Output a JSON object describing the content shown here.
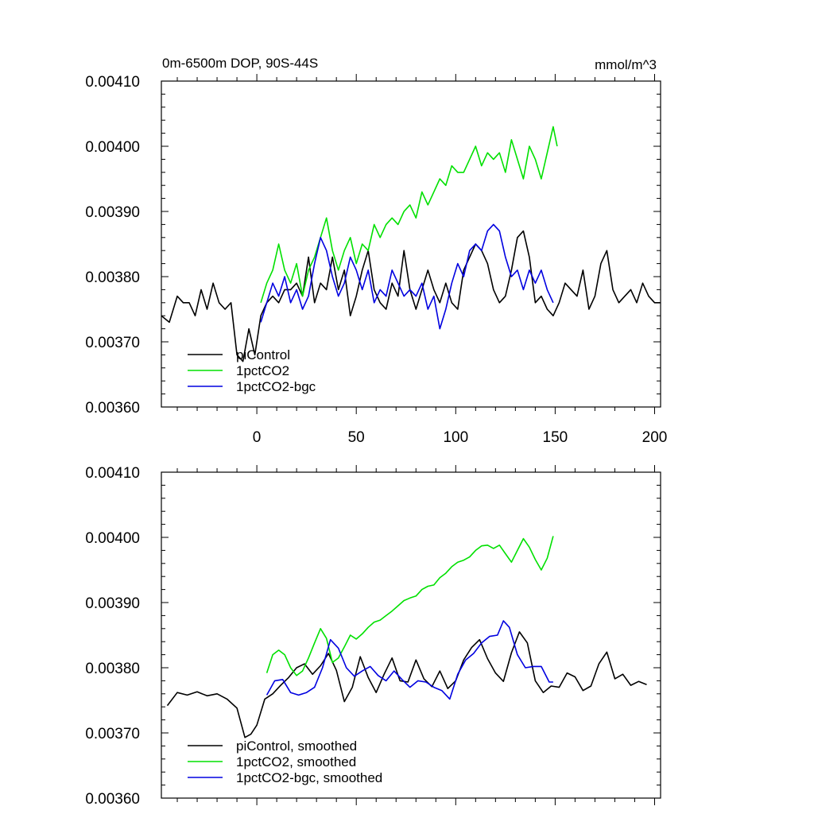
{
  "chart_data": [
    {
      "type": "line",
      "title_left": "0m-6500m DOP, 90S-44S",
      "title_right": "mmol/m^3",
      "xlabel": "",
      "ylabel": "",
      "xlim": [
        -48,
        203
      ],
      "ylim": [
        0.0036,
        0.0041
      ],
      "xticks": [
        0,
        50,
        100,
        150,
        200
      ],
      "xtick_labels": [
        "0",
        "50",
        "100",
        "150",
        "200"
      ],
      "yticks": [
        0.0036,
        0.0037,
        0.0038,
        0.0039,
        0.004,
        0.0041
      ],
      "ytick_labels": [
        "0.00360",
        "0.00370",
        "0.00380",
        "0.00390",
        "0.00400",
        "0.00410"
      ],
      "legend_location": "bottom-left",
      "series": [
        {
          "name": "piControl",
          "color": "#000000",
          "x": [
            -48,
            -44,
            -40,
            -37,
            -34,
            -31,
            -28,
            -25,
            -22,
            -19,
            -16,
            -13,
            -10,
            -7,
            -4,
            -1,
            2,
            5,
            8,
            11,
            14,
            17,
            20,
            23,
            26,
            29,
            32,
            35,
            38,
            41,
            44,
            47,
            50,
            53,
            56,
            59,
            62,
            65,
            68,
            71,
            74,
            77,
            80,
            83,
            86,
            89,
            92,
            95,
            98,
            101,
            104,
            107,
            110,
            113,
            116,
            119,
            122,
            125,
            128,
            131,
            134,
            137,
            140,
            143,
            146,
            149,
            152,
            155,
            158,
            161,
            164,
            167,
            170,
            173,
            176,
            179,
            182,
            185,
            188,
            191,
            194,
            197,
            200,
            203
          ],
          "values": [
            0.00374,
            0.00373,
            0.00377,
            0.00376,
            0.00376,
            0.00374,
            0.00378,
            0.00375,
            0.00379,
            0.00376,
            0.00375,
            0.00376,
            0.00368,
            0.00367,
            0.00372,
            0.00368,
            0.00374,
            0.00376,
            0.00377,
            0.00376,
            0.00378,
            0.00378,
            0.00379,
            0.00377,
            0.00383,
            0.00376,
            0.00379,
            0.00378,
            0.00383,
            0.00378,
            0.00381,
            0.00374,
            0.00377,
            0.00381,
            0.00384,
            0.00378,
            0.00376,
            0.00375,
            0.00379,
            0.00377,
            0.00384,
            0.00378,
            0.00375,
            0.00378,
            0.00381,
            0.00378,
            0.00376,
            0.00379,
            0.00376,
            0.00375,
            0.00381,
            0.00383,
            0.00385,
            0.00384,
            0.00382,
            0.00378,
            0.00376,
            0.00377,
            0.00381,
            0.00386,
            0.00387,
            0.00383,
            0.00376,
            0.00377,
            0.00375,
            0.00374,
            0.00376,
            0.00379,
            0.00378,
            0.00377,
            0.00381,
            0.00375,
            0.00377,
            0.00382,
            0.00384,
            0.00378,
            0.00376,
            0.00377,
            0.00378,
            0.00376,
            0.00379,
            0.00377,
            0.00376,
            0.00376
          ]
        },
        {
          "name": "1pctCO2",
          "color": "#00e000",
          "x": [
            2,
            5,
            8,
            11,
            14,
            17,
            20,
            23,
            26,
            29,
            32,
            35,
            38,
            41,
            44,
            47,
            50,
            53,
            56,
            59,
            62,
            65,
            68,
            71,
            74,
            77,
            80,
            83,
            86,
            89,
            92,
            95,
            98,
            101,
            104,
            107,
            110,
            113,
            116,
            119,
            122,
            125,
            128,
            131,
            134,
            137,
            140,
            143,
            146,
            149,
            151
          ],
          "values": [
            0.00376,
            0.00379,
            0.00381,
            0.00385,
            0.00381,
            0.00379,
            0.00382,
            0.00377,
            0.00381,
            0.00383,
            0.00386,
            0.00389,
            0.00384,
            0.00381,
            0.00384,
            0.00386,
            0.00382,
            0.00385,
            0.00384,
            0.00388,
            0.00386,
            0.00388,
            0.00389,
            0.00388,
            0.0039,
            0.00391,
            0.00389,
            0.00393,
            0.00391,
            0.00393,
            0.00395,
            0.00394,
            0.00397,
            0.00396,
            0.00396,
            0.00398,
            0.004,
            0.00397,
            0.00399,
            0.00398,
            0.00399,
            0.00396,
            0.00401,
            0.00398,
            0.00395,
            0.004,
            0.00398,
            0.00395,
            0.00399,
            0.00403,
            0.004
          ]
        },
        {
          "name": "1pctCO2-bgc",
          "color": "#0000e0",
          "x": [
            2,
            5,
            8,
            11,
            14,
            17,
            20,
            23,
            26,
            29,
            32,
            35,
            38,
            41,
            44,
            47,
            50,
            53,
            56,
            59,
            62,
            65,
            68,
            71,
            74,
            77,
            80,
            83,
            86,
            89,
            92,
            95,
            98,
            101,
            104,
            107,
            110,
            113,
            116,
            119,
            122,
            125,
            128,
            131,
            134,
            137,
            140,
            143,
            146,
            149
          ],
          "values": [
            0.00373,
            0.00376,
            0.00379,
            0.00377,
            0.0038,
            0.00376,
            0.00378,
            0.00375,
            0.00377,
            0.00382,
            0.00386,
            0.00384,
            0.0038,
            0.00377,
            0.00379,
            0.00383,
            0.00381,
            0.00378,
            0.00381,
            0.00376,
            0.00378,
            0.00377,
            0.00381,
            0.00379,
            0.00377,
            0.00378,
            0.00377,
            0.00379,
            0.00375,
            0.00377,
            0.00372,
            0.00375,
            0.00379,
            0.00382,
            0.0038,
            0.00384,
            0.00385,
            0.00384,
            0.00387,
            0.00388,
            0.00387,
            0.00383,
            0.0038,
            0.00381,
            0.00378,
            0.00381,
            0.00379,
            0.00381,
            0.00378,
            0.00376
          ]
        }
      ]
    },
    {
      "type": "line",
      "xlim": [
        -48,
        203
      ],
      "ylim": [
        0.0036,
        0.0041
      ],
      "xticks": [
        0,
        50,
        100,
        150,
        200
      ],
      "yticks": [
        0.0036,
        0.0037,
        0.0038,
        0.0039,
        0.004,
        0.0041
      ],
      "ytick_labels": [
        "0.00360",
        "0.00370",
        "0.00380",
        "0.00390",
        "0.00400",
        "0.00410"
      ],
      "legend_location": "bottom-left",
      "series": [
        {
          "name": "piControl, smoothed",
          "color": "#000000",
          "x": [
            -45,
            -40,
            -35,
            -30,
            -25,
            -20,
            -15,
            -10,
            -6,
            -3,
            0,
            4,
            8,
            12,
            16,
            20,
            24,
            28,
            32,
            36,
            40,
            44,
            48,
            52,
            56,
            60,
            64,
            68,
            72,
            76,
            80,
            84,
            88,
            92,
            96,
            100,
            104,
            108,
            112,
            116,
            120,
            124,
            128,
            132,
            136,
            140,
            144,
            148,
            152,
            156,
            160,
            164,
            168,
            172,
            176,
            180,
            184,
            188,
            192,
            196
          ],
          "values": [
            0.003742,
            0.003762,
            0.003758,
            0.003763,
            0.003757,
            0.00376,
            0.003752,
            0.003738,
            0.003693,
            0.003698,
            0.003712,
            0.003752,
            0.00376,
            0.003773,
            0.003785,
            0.0038,
            0.003806,
            0.00379,
            0.003803,
            0.003822,
            0.003796,
            0.003748,
            0.00377,
            0.003817,
            0.003785,
            0.003762,
            0.00379,
            0.003815,
            0.00378,
            0.003778,
            0.003812,
            0.003783,
            0.003771,
            0.003795,
            0.003768,
            0.00378,
            0.003812,
            0.003831,
            0.003843,
            0.003814,
            0.003792,
            0.003779,
            0.003823,
            0.003855,
            0.003838,
            0.00378,
            0.003762,
            0.003772,
            0.00377,
            0.003792,
            0.003786,
            0.003765,
            0.003772,
            0.003806,
            0.003824,
            0.003783,
            0.00379,
            0.003773,
            0.003779,
            0.003774
          ]
        },
        {
          "name": "1pctCO2, smoothed",
          "color": "#00e000",
          "x": [
            5,
            8,
            11,
            14,
            17,
            20,
            23,
            26,
            29,
            32,
            35,
            38,
            41,
            44,
            47,
            50,
            53,
            56,
            59,
            62,
            65,
            68,
            71,
            74,
            77,
            80,
            83,
            86,
            89,
            92,
            95,
            98,
            101,
            104,
            107,
            110,
            113,
            116,
            119,
            122,
            125,
            128,
            131,
            134,
            137,
            140,
            143,
            146,
            149
          ],
          "values": [
            0.003792,
            0.00382,
            0.003827,
            0.00382,
            0.0038,
            0.003788,
            0.003795,
            0.003815,
            0.003838,
            0.00386,
            0.003845,
            0.003808,
            0.003815,
            0.003832,
            0.00385,
            0.003844,
            0.003852,
            0.003862,
            0.00387,
            0.003873,
            0.00388,
            0.003887,
            0.003895,
            0.003903,
            0.003907,
            0.00391,
            0.00392,
            0.003925,
            0.003927,
            0.003938,
            0.003945,
            0.003955,
            0.003962,
            0.003965,
            0.00397,
            0.00398,
            0.003987,
            0.003988,
            0.003983,
            0.003988,
            0.003975,
            0.003962,
            0.00398,
            0.003998,
            0.003985,
            0.003966,
            0.00395,
            0.003968,
            0.004002
          ]
        },
        {
          "name": "1pctCO2-bgc, smoothed",
          "color": "#0000e0",
          "x": [
            5,
            9,
            13,
            17,
            21,
            25,
            29,
            33,
            37,
            41,
            45,
            49,
            53,
            57,
            61,
            65,
            69,
            73,
            77,
            81,
            85,
            89,
            93,
            97,
            101,
            105,
            109,
            113,
            117,
            121,
            124,
            127,
            131,
            135,
            139,
            143,
            147,
            149
          ],
          "values": [
            0.003758,
            0.00378,
            0.003782,
            0.003762,
            0.003758,
            0.003762,
            0.00377,
            0.0038,
            0.003843,
            0.00383,
            0.0038,
            0.003787,
            0.003795,
            0.003802,
            0.003788,
            0.00378,
            0.003795,
            0.003782,
            0.00377,
            0.00378,
            0.003778,
            0.00377,
            0.003765,
            0.003752,
            0.00379,
            0.003812,
            0.003822,
            0.003838,
            0.003848,
            0.00385,
            0.003872,
            0.003862,
            0.00382,
            0.0038,
            0.003802,
            0.003802,
            0.003778,
            0.003778
          ]
        }
      ]
    }
  ]
}
